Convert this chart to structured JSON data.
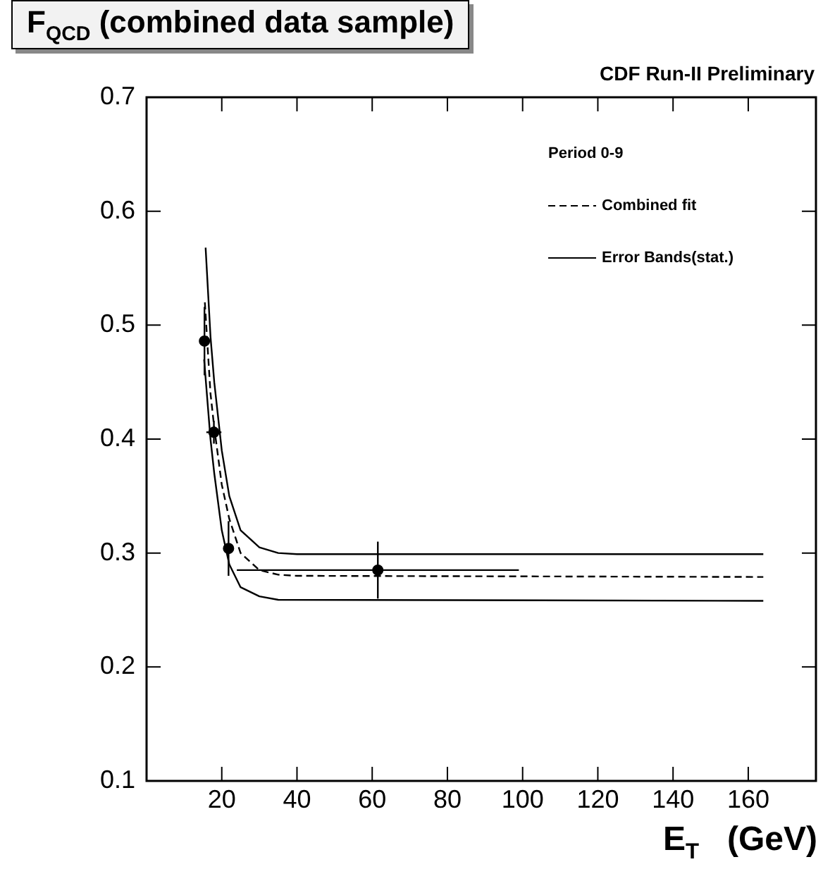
{
  "chart_data": {
    "type": "scatter",
    "title": "F$_{QCD}$ (combined data sample)",
    "subtitle": "CDF Run-II Preliminary",
    "xlabel": "E$_{T}$   (GeV)",
    "legend_title": "Period 0-9",
    "legend": "top right",
    "grid": false,
    "xlim": [
      0,
      178
    ],
    "xticks": [
      20,
      40,
      60,
      80,
      100,
      120,
      140,
      160
    ],
    "ylim": [
      0.1,
      0.7
    ],
    "yticks": [
      0.1,
      0.2,
      0.3,
      0.4,
      0.5,
      0.6,
      0.7
    ],
    "series": [
      {
        "color": "#000000",
        "marker": "circle",
        "x": [
          15.4,
          17.9,
          21.8,
          61.5
        ],
        "values": [
          0.486,
          0.406,
          0.304,
          0.285
        ],
        "errors": [
          0.03,
          0.01,
          0.024,
          0.025
        ],
        "xerrors": [
          0.5,
          2,
          0.5,
          37.5
        ]
      },
      {
        "type": "line",
        "name": "Combined fit",
        "color": "#000000",
        "line_style": "dashed",
        "x": [
          15.5,
          17,
          18,
          20,
          22,
          25,
          30,
          35,
          40,
          164
        ],
        "values": [
          0.52,
          0.44,
          0.41,
          0.36,
          0.33,
          0.3,
          0.285,
          0.281,
          0.28,
          0.279
        ]
      },
      {
        "type": "line",
        "name": "Error Bands(stat.)",
        "color": "#000000",
        "line_style": "solid",
        "x": [
          15.7,
          17,
          18,
          20,
          22,
          25,
          30,
          35,
          40,
          164
        ],
        "values": [
          0.568,
          0.49,
          0.45,
          0.39,
          0.35,
          0.32,
          0.305,
          0.3,
          0.299,
          0.299
        ]
      },
      {
        "type": "line",
        "color": "#000000",
        "line_style": "solid",
        "x": [
          15.3,
          17,
          18,
          20,
          22,
          25,
          30,
          35,
          164
        ],
        "values": [
          0.47,
          0.4,
          0.37,
          0.32,
          0.29,
          0.27,
          0.262,
          0.259,
          0.258
        ]
      }
    ]
  }
}
